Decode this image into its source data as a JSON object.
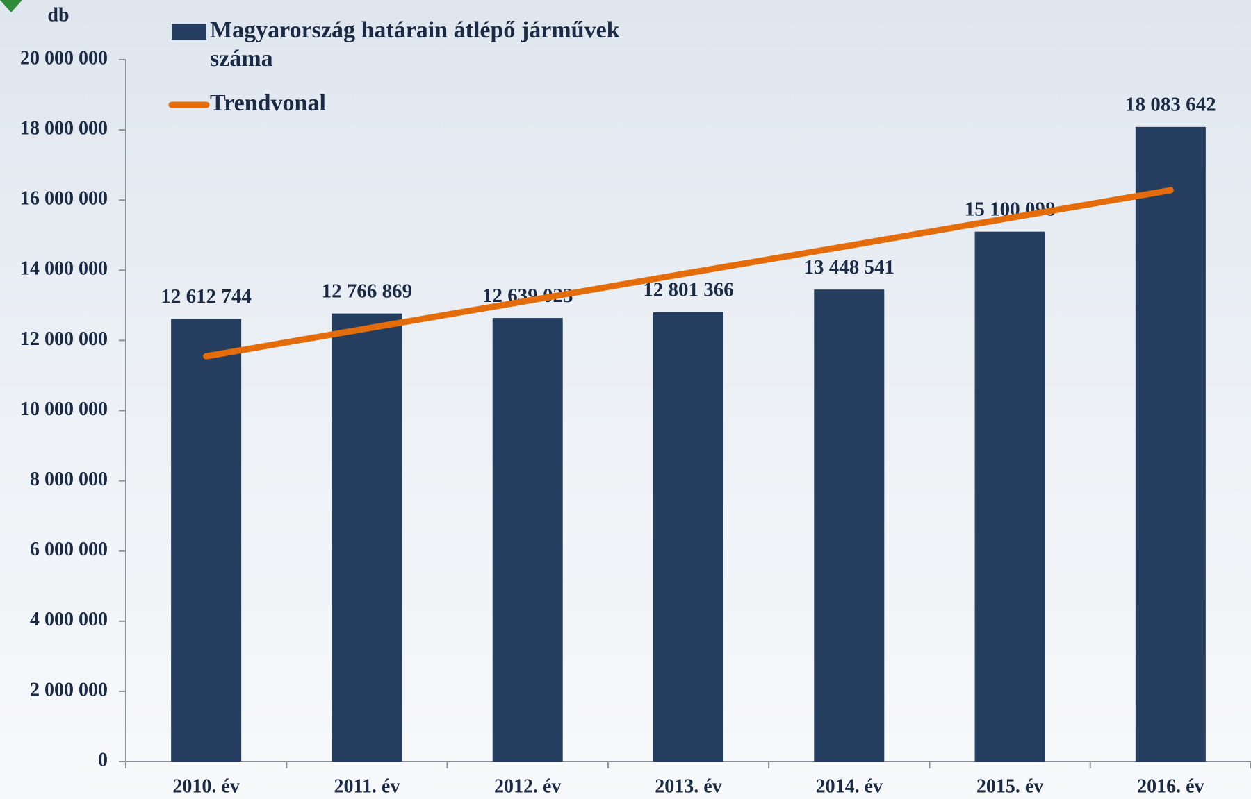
{
  "chart_data": {
    "type": "bar",
    "y_label": "db",
    "categories": [
      "2010. év",
      "2011. év",
      "2012. év",
      "2013. év",
      "2014. év",
      "2015. év",
      "2016. év"
    ],
    "series": [
      {
        "name": "Magyarország határain átlépő járművek száma",
        "type": "bar",
        "color": "#253d5e",
        "values": [
          12612744,
          12766869,
          12639023,
          12801366,
          13448541,
          15100098,
          18083642
        ],
        "value_labels": [
          "12 612 744",
          "12 766 869",
          "12 639 023",
          "12 801 366",
          "13 448 541",
          "15 100 098",
          "18 083 642"
        ]
      },
      {
        "name": "Trendvonal",
        "type": "line",
        "color": "#e46c0a",
        "values": [
          11550000,
          12340000,
          13130000,
          13920000,
          14700000,
          15490000,
          16280000
        ]
      }
    ],
    "ylim": [
      0,
      20000000
    ],
    "yticks": [
      0,
      {
        "value": 2000000,
        "label": "2 000 000"
      },
      {
        "value": 4000000,
        "label": "4 000 000"
      },
      {
        "value": 6000000,
        "label": "6 000 000"
      },
      {
        "value": 8000000,
        "label": "8 000 000"
      },
      {
        "value": 10000000,
        "label": "10 000 000"
      },
      {
        "value": 12000000,
        "label": "12 000 000"
      },
      {
        "value": 14000000,
        "label": "14 000 000"
      },
      {
        "value": 16000000,
        "label": "16 000 000"
      },
      {
        "value": 18000000,
        "label": "18 000 000"
      },
      {
        "value": 20000000,
        "label": "20 000 000"
      }
    ]
  }
}
